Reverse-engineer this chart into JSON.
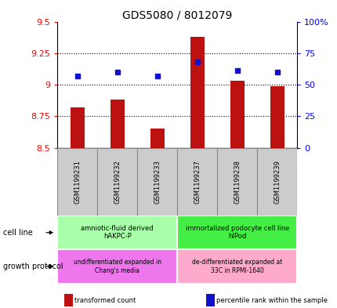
{
  "title": "GDS5080 / 8012079",
  "samples": [
    "GSM1199231",
    "GSM1199232",
    "GSM1199233",
    "GSM1199237",
    "GSM1199238",
    "GSM1199239"
  ],
  "transformed_count": [
    8.82,
    8.88,
    8.65,
    9.38,
    9.03,
    8.99
  ],
  "percentile_rank": [
    9.07,
    9.1,
    9.07,
    9.18,
    9.11,
    9.1
  ],
  "ylim_left": [
    8.5,
    9.5
  ],
  "ylim_right": [
    0,
    100
  ],
  "yticks_left": [
    8.5,
    8.75,
    9.0,
    9.25,
    9.5
  ],
  "ytick_labels_left": [
    "8.5",
    "8.75",
    "9",
    "9.25",
    "9.5"
  ],
  "yticks_right": [
    0,
    25,
    50,
    75,
    100
  ],
  "ytick_labels_right": [
    "0",
    "25",
    "50",
    "75",
    "100%"
  ],
  "bar_color": "#bb1111",
  "dot_color": "#1111cc",
  "bar_bottom": 8.5,
  "bar_width": 0.35,
  "cell_line_groups": [
    {
      "label": "amniotic-fluid derived\nhAKPC-P",
      "samples": [
        0,
        1,
        2
      ],
      "color": "#aaffaa"
    },
    {
      "label": "immortalized podocyte cell line\nhIPod",
      "samples": [
        3,
        4,
        5
      ],
      "color": "#44ee44"
    }
  ],
  "growth_protocol_groups": [
    {
      "label": "undifferentiated expanded in\nChang's media",
      "samples": [
        0,
        1,
        2
      ],
      "color": "#ee77ee"
    },
    {
      "label": "de-differentiated expanded at\n33C in RPMI-1640",
      "samples": [
        3,
        4,
        5
      ],
      "color": "#ffaacc"
    }
  ],
  "sample_bg_color": "#cccccc",
  "sample_border_color": "#888888",
  "legend_items": [
    {
      "color": "#bb1111",
      "label": "transformed count"
    },
    {
      "color": "#1111cc",
      "label": "percentile rank within the sample"
    }
  ],
  "cell_line_label": "cell line",
  "growth_protocol_label": "growth protocol"
}
